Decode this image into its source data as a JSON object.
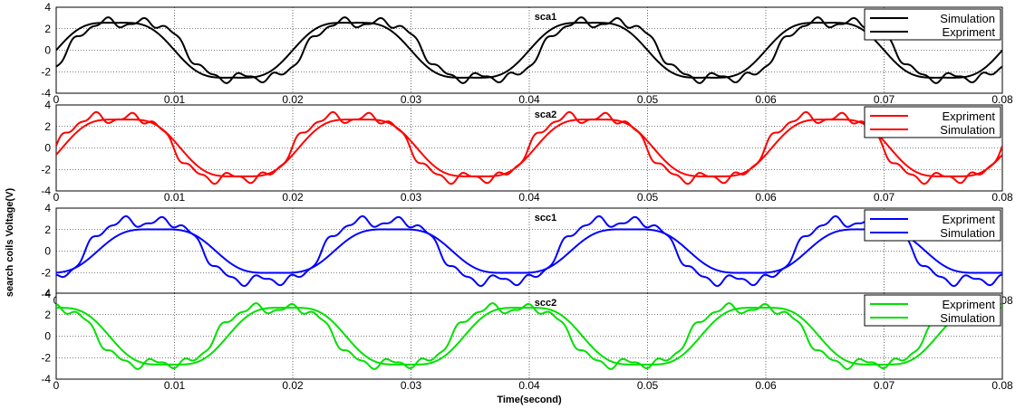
{
  "figure": {
    "ylabel": "search coils Voltage(V)",
    "xlabel": "Time(second)"
  },
  "chart_data": [
    {
      "type": "line",
      "title": "sca1",
      "xlim": [
        0,
        0.08
      ],
      "ylim": [
        -4,
        4
      ],
      "xticks": [
        "0",
        "0.01",
        "0.02",
        "0.03",
        "0.04",
        "0.05",
        "0.06",
        "0.07",
        "0.08"
      ],
      "yticks": [
        "-4",
        "-2",
        "0",
        "2",
        "4"
      ],
      "grid": true,
      "legend": "top-right",
      "color": "#000000",
      "series": [
        {
          "name": "Simulation",
          "period": 0.02,
          "amplitude": 2.9,
          "phase_x": 0.0,
          "kind": "simulation"
        },
        {
          "name": "Expriment",
          "period": 0.02,
          "amplitude": 3.3,
          "phase_x": 0.001,
          "kind": "experiment"
        }
      ]
    },
    {
      "type": "line",
      "title": "sca2",
      "xlim": [
        0,
        0.08
      ],
      "ylim": [
        -4,
        4
      ],
      "xticks": [
        "0",
        "0.01",
        "0.02",
        "0.03",
        "0.04",
        "0.05",
        "0.06",
        "0.07",
        "0.08"
      ],
      "yticks": [
        "-4",
        "-2",
        "0",
        "2",
        "4"
      ],
      "grid": true,
      "legend": "top-right",
      "color": "#ff0000",
      "series": [
        {
          "name": "Expriment",
          "period": 0.02,
          "amplitude": 3.6,
          "phase_x": 0.0,
          "kind": "experiment"
        },
        {
          "name": "Simulation",
          "period": 0.02,
          "amplitude": 3.0,
          "phase_x": 0.0005,
          "kind": "simulation"
        }
      ]
    },
    {
      "type": "line",
      "title": "scc1",
      "xlim": [
        0,
        0.08
      ],
      "ylim": [
        -4,
        4
      ],
      "xticks": [
        "0",
        "0.01",
        "0.02",
        "0.03",
        "0.04",
        "0.05",
        "0.06",
        "0.07",
        "0.08"
      ],
      "yticks": [
        "-4",
        "-2",
        "0",
        "2",
        "4"
      ],
      "grid": true,
      "legend": "top-right",
      "color": "#0000ff",
      "series": [
        {
          "name": "Expriment",
          "period": 0.02,
          "amplitude": 3.5,
          "phase_x": 0.0025,
          "kind": "experiment"
        },
        {
          "name": "Simulation",
          "period": 0.02,
          "amplitude": 2.3,
          "phase_x": 0.0035,
          "kind": "simulation"
        }
      ]
    },
    {
      "type": "line",
      "title": "scc2",
      "xlim": [
        0,
        0.08
      ],
      "ylim": [
        -4,
        4
      ],
      "xticks": [
        "0",
        "0.01",
        "0.02",
        "0.03",
        "0.04",
        "0.05",
        "0.06",
        "0.07",
        "0.08"
      ],
      "yticks": [
        "-4",
        "-2",
        "0",
        "2",
        "4"
      ],
      "grid": true,
      "legend": "top-right",
      "color": "#00e000",
      "series": [
        {
          "name": "Expriment",
          "period": 0.02,
          "amplitude": 3.3,
          "phase_x": 0.0135,
          "kind": "experiment"
        },
        {
          "name": "Simulation",
          "period": 0.02,
          "amplitude": 3.0,
          "phase_x": 0.0145,
          "kind": "simulation"
        }
      ]
    }
  ]
}
